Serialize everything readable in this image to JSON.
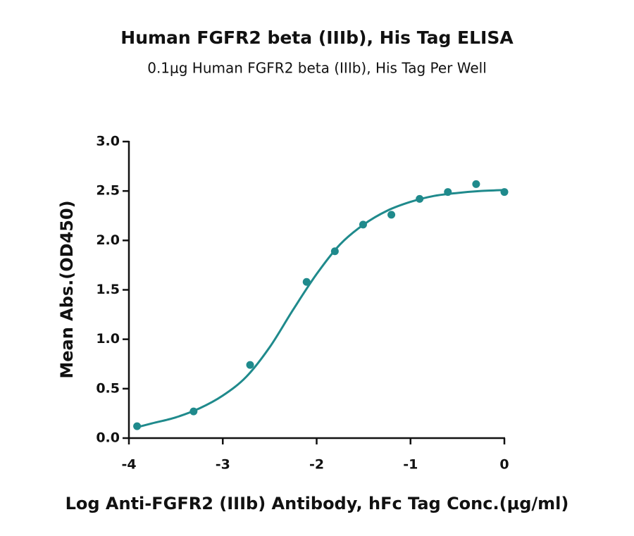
{
  "chart_data": {
    "type": "scatter",
    "title": "Human FGFR2 beta (IIIb), His Tag ELISA",
    "subtitle": "0.1μg Human FGFR2 beta (IIIb), His Tag Per Well",
    "x_label": "Log Anti-FGFR2 (IIIb) Antibody, hFc Tag Conc.(μg/ml)",
    "y_label": "Mean Abs.(OD450)",
    "xlim": [
      -4,
      0
    ],
    "ylim": [
      0,
      3
    ],
    "xticks": [
      -4,
      -3,
      -2,
      -1,
      0
    ],
    "yticks": [
      {
        "value": 0,
        "label": "0.0"
      },
      0.5,
      {
        "value": 1,
        "label": "1.0"
      },
      1.5,
      {
        "value": 2,
        "label": "2.0"
      },
      2.5,
      {
        "value": 3,
        "label": "3.0"
      }
    ],
    "series": [
      {
        "mode": "markers",
        "color": "#1f8a8c",
        "x": [
          -3.913,
          -3.311,
          -2.709,
          -2.107,
          -1.806,
          -1.505,
          -1.204,
          -0.903,
          -0.602,
          -0.301,
          0
        ],
        "values": [
          0.12,
          0.27,
          0.74,
          1.58,
          1.89,
          2.16,
          2.26,
          2.42,
          2.49,
          2.57,
          2.49
        ]
      },
      {
        "mode": "line",
        "color": "#1f8a8c",
        "x": [
          -3.913,
          -3.75,
          -3.5,
          -3.25,
          -3,
          -2.75,
          -2.5,
          -2.25,
          -2,
          -1.75,
          -1.5,
          -1.25,
          -1,
          -0.75,
          -0.5,
          -0.25,
          0
        ],
        "values": [
          0.11,
          0.15,
          0.21,
          0.3,
          0.43,
          0.62,
          0.92,
          1.3,
          1.66,
          1.96,
          2.16,
          2.3,
          2.39,
          2.45,
          2.48,
          2.5,
          2.51
        ]
      }
    ]
  }
}
